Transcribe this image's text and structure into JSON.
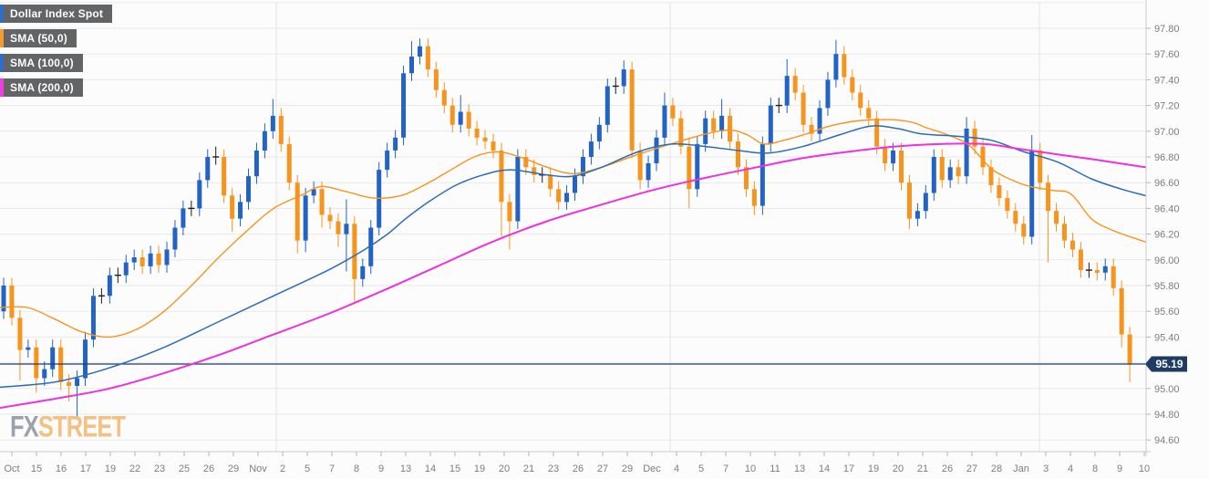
{
  "legend": {
    "items": [
      {
        "label": "Dollar Index Spot",
        "color": "#2263c5"
      },
      {
        "label": "SMA (50,0)",
        "color": "#f7941e"
      },
      {
        "label": "SMA (100,0)",
        "color": "#2263c5"
      },
      {
        "label": "SMA (200,0)",
        "color": "#ee30dd"
      }
    ]
  },
  "watermark": {
    "fx": "FX",
    "street": "STREET"
  },
  "price_line": {
    "label": "95.19",
    "value": 95.19,
    "color": "#1e3c66"
  },
  "colors": {
    "bull": "#2263c5",
    "bear": "#f7941e",
    "sma50": "#f7941e",
    "sma100": "#2b6cb5",
    "sma200": "#ee30dd",
    "doji": "#1c1c1c",
    "grid": "#e9e9e9",
    "month_grid": "#e3e3e3",
    "axis_line": "#cccccc",
    "tick": "#b5b5b5"
  },
  "y_axis": {
    "tick_labels": [
      "97.80",
      "97.60",
      "97.40",
      "97.20",
      "97.00",
      "96.80",
      "96.60",
      "96.40",
      "96.20",
      "96.00",
      "95.80",
      "95.60",
      "95.40",
      "95.00",
      "94.80",
      "94.60"
    ],
    "grid_min": 94.6,
    "grid_max": 98.0,
    "grid_step": 0.2
  },
  "x_axis": {
    "labels": [
      "Oct",
      "15",
      "16",
      "17",
      "19",
      "22",
      "23",
      "25",
      "26",
      "29",
      "Nov",
      "2",
      "5",
      "7",
      "8",
      "9",
      "13",
      "14",
      "15",
      "19",
      "20",
      "21",
      "23",
      "26",
      "27",
      "29",
      "Dec",
      "4",
      "5",
      "7",
      "10",
      "11",
      "13",
      "14",
      "17",
      "19",
      "20",
      "21",
      "26",
      "27",
      "28",
      "Jan",
      "3",
      "4",
      "8",
      "9",
      "10"
    ],
    "month_labels": [
      "Nov",
      "Dec",
      "Jan"
    ]
  },
  "chart_data": {
    "type": "candlestick",
    "title": "Dollar Index Spot",
    "ylim": [
      94.45,
      97.9
    ],
    "legend_position": "top-left",
    "grid": true,
    "last_price": 95.19,
    "candles": {
      "note": "intraday bars Oct-Jan; open of bar i = close of bar i-1; wick extends default_wick beyond body unless overridden; zero-change bars render as black crosses",
      "first_open": 95.6,
      "default_wick": 0.06,
      "closes": [
        95.8,
        95.55,
        95.3,
        95.32,
        95.08,
        95.15,
        95.32,
        95.05,
        95.02,
        95.08,
        95.38,
        95.72,
        95.72,
        95.88,
        95.88,
        95.98,
        96.02,
        95.95,
        96.05,
        95.96,
        96.08,
        96.25,
        96.4,
        96.4,
        96.62,
        96.8,
        96.8,
        96.5,
        96.32,
        96.45,
        96.65,
        96.85,
        97.0,
        97.12,
        96.9,
        96.6,
        96.15,
        96.5,
        96.55,
        96.35,
        96.3,
        96.2,
        96.28,
        95.85,
        95.95,
        96.25,
        96.7,
        96.85,
        96.95,
        97.45,
        97.58,
        97.66,
        97.48,
        97.32,
        97.2,
        97.05,
        97.15,
        97.02,
        96.95,
        96.92,
        96.85,
        96.45,
        96.3,
        96.8,
        96.72,
        96.66,
        96.66,
        96.55,
        96.45,
        96.52,
        96.65,
        96.8,
        96.92,
        97.05,
        97.35,
        97.35,
        97.48,
        96.85,
        96.62,
        96.75,
        96.95,
        97.2,
        97.1,
        96.88,
        96.55,
        96.9,
        97.1,
        97.0,
        97.12,
        96.92,
        96.72,
        96.55,
        96.42,
        96.9,
        97.2,
        97.2,
        97.43,
        97.3,
        97.05,
        96.98,
        97.18,
        97.4,
        97.6,
        97.42,
        97.3,
        97.18,
        97.1,
        96.88,
        96.75,
        96.85,
        96.6,
        96.32,
        96.38,
        96.52,
        96.8,
        96.62,
        96.72,
        96.65,
        97.02,
        96.88,
        96.72,
        96.58,
        96.48,
        96.38,
        96.28,
        96.18,
        96.85,
        96.6,
        96.38,
        96.28,
        96.15,
        96.08,
        95.92,
        95.92,
        95.9,
        95.95,
        95.78,
        95.42,
        95.19
      ],
      "high_overrides": {
        "0": 95.86,
        "26": 96.88,
        "33": 97.25,
        "42": 96.47,
        "50": 97.7,
        "51": 97.72,
        "56": 97.28,
        "75": 97.42,
        "76": 97.55,
        "81": 97.3,
        "88": 97.25,
        "94": 97.26,
        "96": 97.56,
        "102": 97.71,
        "118": 97.11,
        "126": 96.97
      },
      "low_overrides": {
        "2": 95.06,
        "4": 94.97,
        "8": 94.9,
        "9": 94.78,
        "28": 96.22,
        "36": 96.05,
        "37": 96.06,
        "39": 96.25,
        "41": 96.1,
        "42": 95.91,
        "43": 95.66,
        "61": 96.18,
        "62": 96.08,
        "78": 96.55,
        "84": 96.4,
        "92": 96.35,
        "93": 96.35,
        "111": 96.24,
        "125": 96.12,
        "128": 95.98,
        "137": 95.32,
        "138": 95.05
      }
    },
    "overlays": [
      {
        "name": "SMA (50,0)",
        "color": "#f7941e",
        "width": 1.4,
        "points": [
          [
            0,
            95.63
          ],
          [
            30,
            95.63
          ],
          [
            60,
            95.54
          ],
          [
            90,
            95.44
          ],
          [
            120,
            95.4
          ],
          [
            150,
            95.46
          ],
          [
            180,
            95.6
          ],
          [
            210,
            95.8
          ],
          [
            240,
            96.02
          ],
          [
            270,
            96.22
          ],
          [
            300,
            96.4
          ],
          [
            330,
            96.5
          ],
          [
            352,
            96.57
          ],
          [
            380,
            96.53
          ],
          [
            410,
            96.48
          ],
          [
            440,
            96.5
          ],
          [
            465,
            96.58
          ],
          [
            490,
            96.68
          ],
          [
            520,
            96.8
          ],
          [
            545,
            96.84
          ],
          [
            570,
            96.8
          ],
          [
            600,
            96.72
          ],
          [
            628,
            96.67
          ],
          [
            660,
            96.72
          ],
          [
            700,
            96.82
          ],
          [
            740,
            96.91
          ],
          [
            775,
            96.98
          ],
          [
            800,
            97.01
          ],
          [
            820,
            96.97
          ],
          [
            838,
            96.9
          ],
          [
            860,
            96.93
          ],
          [
            885,
            96.98
          ],
          [
            910,
            97.04
          ],
          [
            940,
            97.08
          ],
          [
            975,
            97.09
          ],
          [
            1000,
            97.07
          ],
          [
            1015,
            97.03
          ],
          [
            1040,
            96.97
          ],
          [
            1063,
            96.89
          ],
          [
            1087,
            96.71
          ],
          [
            1110,
            96.62
          ],
          [
            1130,
            96.57
          ],
          [
            1155,
            96.54
          ],
          [
            1175,
            96.51
          ],
          [
            1197,
            96.32
          ],
          [
            1220,
            96.23
          ],
          [
            1256,
            96.14
          ]
        ]
      },
      {
        "name": "SMA (100,0)",
        "color": "#2b6cb5",
        "width": 1.5,
        "points": [
          [
            0,
            95.01
          ],
          [
            60,
            95.05
          ],
          [
            120,
            95.16
          ],
          [
            180,
            95.32
          ],
          [
            240,
            95.52
          ],
          [
            300,
            95.72
          ],
          [
            360,
            95.92
          ],
          [
            400,
            96.08
          ],
          [
            425,
            96.2
          ],
          [
            445,
            96.32
          ],
          [
            470,
            96.45
          ],
          [
            500,
            96.58
          ],
          [
            530,
            96.66
          ],
          [
            560,
            96.7
          ],
          [
            600,
            96.66
          ],
          [
            628,
            96.65
          ],
          [
            660,
            96.72
          ],
          [
            700,
            96.84
          ],
          [
            737,
            96.9
          ],
          [
            775,
            96.88
          ],
          [
            810,
            96.85
          ],
          [
            842,
            96.83
          ],
          [
            880,
            96.88
          ],
          [
            920,
            96.97
          ],
          [
            955,
            97.04
          ],
          [
            985,
            97.02
          ],
          [
            1010,
            96.98
          ],
          [
            1050,
            96.96
          ],
          [
            1087,
            96.93
          ],
          [
            1123,
            96.84
          ],
          [
            1160,
            96.76
          ],
          [
            1197,
            96.63
          ],
          [
            1230,
            96.55
          ],
          [
            1256,
            96.5
          ]
        ]
      },
      {
        "name": "SMA (200,0)",
        "color": "#ee30dd",
        "width": 2,
        "points": [
          [
            0,
            94.85
          ],
          [
            60,
            94.92
          ],
          [
            120,
            95.0
          ],
          [
            180,
            95.12
          ],
          [
            240,
            95.26
          ],
          [
            300,
            95.42
          ],
          [
            360,
            95.58
          ],
          [
            420,
            95.76
          ],
          [
            480,
            95.95
          ],
          [
            540,
            96.14
          ],
          [
            600,
            96.3
          ],
          [
            660,
            96.43
          ],
          [
            720,
            96.55
          ],
          [
            775,
            96.64
          ],
          [
            830,
            96.72
          ],
          [
            880,
            96.79
          ],
          [
            930,
            96.84
          ],
          [
            980,
            96.88
          ],
          [
            1030,
            96.9
          ],
          [
            1080,
            96.9
          ],
          [
            1120,
            96.86
          ],
          [
            1160,
            96.82
          ],
          [
            1200,
            96.78
          ],
          [
            1256,
            96.72
          ]
        ]
      }
    ]
  }
}
